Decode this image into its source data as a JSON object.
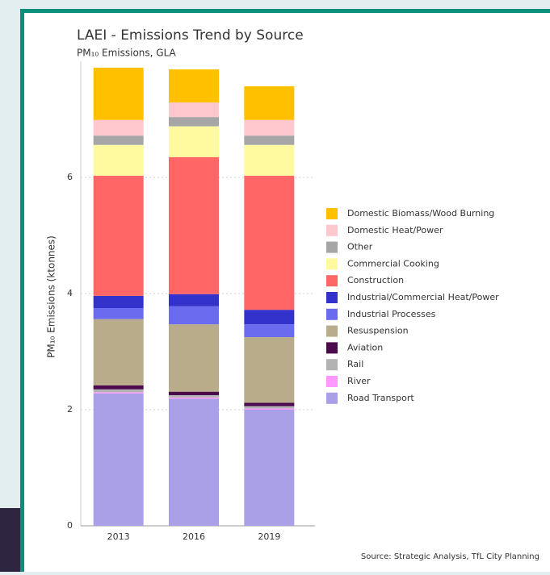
{
  "chart_data": {
    "type": "stacked_bar",
    "title": "LAEI - Emissions Trend by Source",
    "subtitle": "PM₁₀ Emissions, GLA",
    "y_label": "PM₁₀ Emissions (ktonnes)",
    "source": "Source: Strategic Analysis, TfL City Planning",
    "categories": [
      "2013",
      "2016",
      "2019"
    ],
    "ylim": [
      0,
      8
    ],
    "yticks": [
      0,
      2,
      4,
      6
    ],
    "grid": true,
    "legend": "right",
    "series": [
      {
        "name": "Road Transport",
        "color": "#a9a0e8",
        "values": [
          2.28,
          2.19,
          2.0
        ]
      },
      {
        "name": "River",
        "color": "#ff99ff",
        "values": [
          0.02,
          0.02,
          0.02
        ]
      },
      {
        "name": "Rail",
        "color": "#b3b3b3",
        "values": [
          0.05,
          0.04,
          0.04
        ]
      },
      {
        "name": "Aviation",
        "color": "#4b0a4b",
        "values": [
          0.07,
          0.06,
          0.06
        ]
      },
      {
        "name": "Resuspension",
        "color": "#b8ac8a",
        "values": [
          1.14,
          1.16,
          1.13
        ]
      },
      {
        "name": "Industrial Processes",
        "color": "#6b6bef",
        "values": [
          0.19,
          0.31,
          0.22
        ]
      },
      {
        "name": "Industrial/Commercial Heat/Power",
        "color": "#3333cc",
        "values": [
          0.21,
          0.21,
          0.25
        ]
      },
      {
        "name": "Construction",
        "color": "#ff6666",
        "values": [
          2.07,
          2.36,
          2.31
        ]
      },
      {
        "name": "Commercial Cooking",
        "color": "#fffaa0",
        "values": [
          0.53,
          0.53,
          0.53
        ]
      },
      {
        "name": "Other",
        "color": "#a6a6a6",
        "values": [
          0.16,
          0.16,
          0.16
        ]
      },
      {
        "name": "Domestic Heat/Power",
        "color": "#ffc7ce",
        "values": [
          0.27,
          0.25,
          0.27
        ]
      },
      {
        "name": "Domestic Biomass/Wood Burning",
        "color": "#ffc000",
        "values": [
          0.9,
          0.57,
          0.58
        ]
      }
    ]
  }
}
